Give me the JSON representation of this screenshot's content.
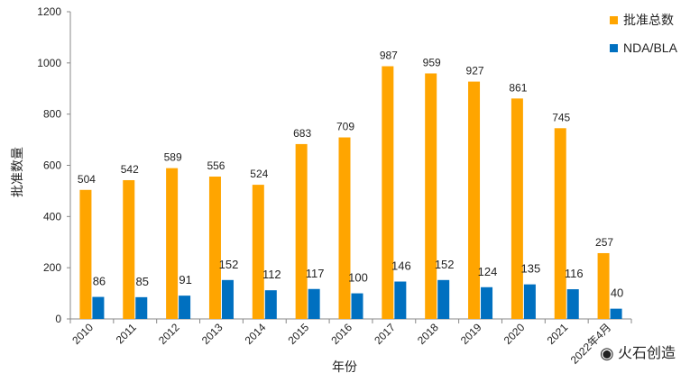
{
  "chart_data": {
    "type": "bar",
    "categories": [
      "2010",
      "2011",
      "2012",
      "2013",
      "2014",
      "2015",
      "2016",
      "2017",
      "2018",
      "2019",
      "2020",
      "2021",
      "2022年4月"
    ],
    "series": [
      {
        "name": "批准总数",
        "values": [
          504,
          542,
          589,
          556,
          524,
          683,
          709,
          987,
          959,
          927,
          861,
          745,
          257
        ],
        "color": "#FFA500"
      },
      {
        "name": "NDA/BLA",
        "values": [
          86,
          85,
          91,
          152,
          112,
          117,
          100,
          146,
          152,
          124,
          135,
          116,
          40
        ],
        "color": "#0070C0"
      }
    ],
    "xlabel": "年份",
    "ylabel": "批准数量",
    "ylim": [
      0,
      1200
    ],
    "yticks": [
      0,
      200,
      400,
      600,
      800,
      1000,
      1200
    ],
    "grid": false,
    "legend": "top-right"
  },
  "watermark": "火石创造"
}
